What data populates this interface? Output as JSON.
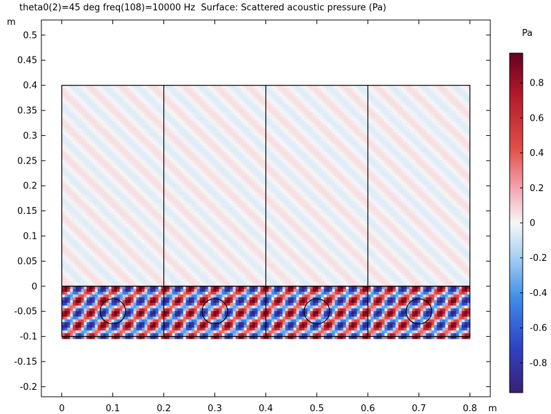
{
  "title": "theta0(2)=45 deg freq(108)=10000 Hz  Surface: Scattered acoustic pressure (Pa)",
  "chart_data": {
    "type": "heatmap",
    "title": "theta0(2)=45 deg freq(108)=10000 Hz  Surface: Scattered acoustic pressure (Pa)",
    "quantity": "Scattered acoustic pressure",
    "units": "Pa",
    "x_unit": "m",
    "y_unit": "m",
    "xlim": [
      -0.04,
      0.84
    ],
    "ylim": [
      -0.22,
      0.53
    ],
    "x_ticks": [
      0,
      0.1,
      0.2,
      0.3,
      0.4,
      0.5,
      0.6,
      0.7,
      0.8
    ],
    "x_tick_labels": [
      "0",
      "0.1",
      "0.2",
      "0.3",
      "0.4",
      "0.5",
      "0.6",
      "0.7",
      "0.8"
    ],
    "y_ticks": [
      0.5,
      0.45,
      0.4,
      0.35,
      0.3,
      0.25,
      0.2,
      0.15,
      0.1,
      0.05,
      0,
      -0.05,
      -0.1,
      -0.15,
      -0.2
    ],
    "y_tick_labels": [
      "0.5",
      "0.45",
      "0.4",
      "0.35",
      "0.3",
      "0.25",
      "0.2",
      "0.15",
      "0.1",
      "0.05",
      "0",
      "-0.05",
      "-0.1",
      "-0.15",
      "-0.2"
    ],
    "colorbar": {
      "unit_label": "Pa",
      "range": [
        -0.97,
        0.97
      ],
      "colormap": "RdBu wave",
      "ticks": [
        0.8,
        0.6,
        0.4,
        0.2,
        0,
        -0.2,
        -0.4,
        -0.6,
        -0.8
      ],
      "tick_labels": [
        "0.8",
        "0.6",
        "0.4",
        "0.2",
        "0",
        "-0.2",
        "-0.4",
        "-0.6",
        "-0.8"
      ]
    },
    "domains": [
      {
        "name": "air-domain",
        "x": [
          0,
          0.8
        ],
        "y": [
          0,
          0.4
        ],
        "amplitude": 0.06
      },
      {
        "name": "scatterer-layer",
        "x": [
          0,
          0.8
        ],
        "y": [
          -0.1,
          0
        ],
        "amplitude": 0.95
      }
    ],
    "cell_boundaries_x": [
      0.2,
      0.4,
      0.6
    ],
    "inclusions": [
      {
        "cx": 0.1,
        "cy": -0.05,
        "r": 0.025
      },
      {
        "cx": 0.3,
        "cy": -0.05,
        "r": 0.025
      },
      {
        "cx": 0.5,
        "cy": -0.05,
        "r": 0.025
      },
      {
        "cx": 0.7,
        "cy": -0.05,
        "r": 0.025
      }
    ],
    "incidence_angle_deg": 45,
    "frequency_hz": 10000
  }
}
